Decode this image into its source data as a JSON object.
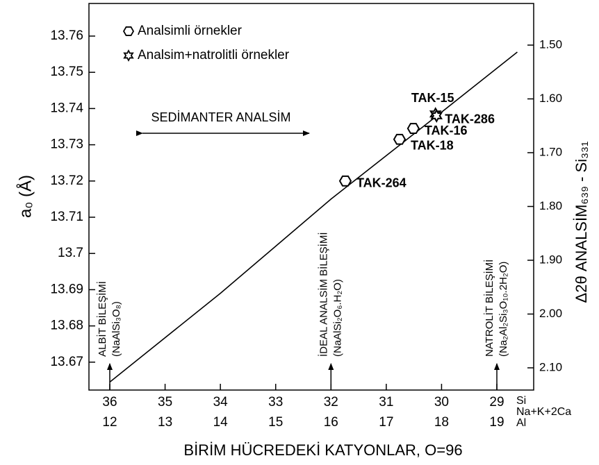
{
  "chart_data": {
    "type": "scatter",
    "xlabel": "BİRİM HÜCREDEKİ KATYONLAR, O=96",
    "ylabel": "a₀ (Å)",
    "y2label": "Δ2θ ANALSİM₆₃₉ - Si₃₃₁",
    "xlim": [
      36.377,
      28.334
    ],
    "xticks": [
      36,
      35,
      34,
      33,
      32,
      31,
      30,
      29
    ],
    "xticks_secondary": [
      12,
      13,
      14,
      15,
      16,
      17,
      18,
      19
    ],
    "x_row_labels": [
      "Si",
      "Na+K+2Ca",
      "Al"
    ],
    "ylim": [
      13.6623,
      13.769
    ],
    "yticks": [
      13.67,
      13.68,
      13.69,
      13.7,
      13.71,
      13.72,
      13.73,
      13.74,
      13.75,
      13.76
    ],
    "y2lim": [
      2.1413,
      1.4226
    ],
    "y2ticks": [
      {
        "value": 1.5,
        "label": "1.50"
      },
      {
        "value": 1.6,
        "label": "1.60"
      },
      {
        "value": 1.7,
        "label": "1.70"
      },
      {
        "value": 1.8,
        "label": "1.80"
      },
      {
        "value": 1.9,
        "label": "1.90"
      },
      {
        "value": 2.0,
        "label": "2.00"
      },
      {
        "value": 2.1,
        "label": "2.10"
      }
    ],
    "legend": "upper left",
    "series": [
      {
        "name": "Analsimli örnekler",
        "marker": "hexagon",
        "color": "#000000",
        "x": [
          31.74,
          30.76,
          30.51
        ],
        "values": [
          13.72,
          13.7315,
          13.7345
        ],
        "labels": [
          "TAK-264",
          "TAK-18",
          "TAK-16"
        ]
      },
      {
        "name": "Analsim+natrolitli örnekler",
        "marker": "star",
        "color": "#000000",
        "x": [
          30.11,
          30.09
        ],
        "values": [
          13.7385,
          13.738
        ],
        "labels": [
          "TAK-15",
          "TAK-286"
        ]
      }
    ],
    "curve": {
      "x": [
        36,
        34,
        32,
        30,
        28.63
      ],
      "values": [
        13.6645,
        13.689,
        13.715,
        13.739,
        13.7556
      ]
    },
    "annotations": [
      {
        "text": "ALBİT BİLEŞİMİ",
        "formula": "(NaAlSi₃O₈)",
        "x": 36
      },
      {
        "text": "İDEAL ANALSİM BİLEŞİMİ",
        "formula": "(NaAlSi₂O₆.H₂O)",
        "x": 32
      },
      {
        "text": "NATROLİT BİLEŞİMİ",
        "formula": "(Na₂Al₂Si₃O₁₀.2H₂O)",
        "x": 29
      }
    ],
    "range_annotation": "SEDİMANTER ANALSİM"
  }
}
